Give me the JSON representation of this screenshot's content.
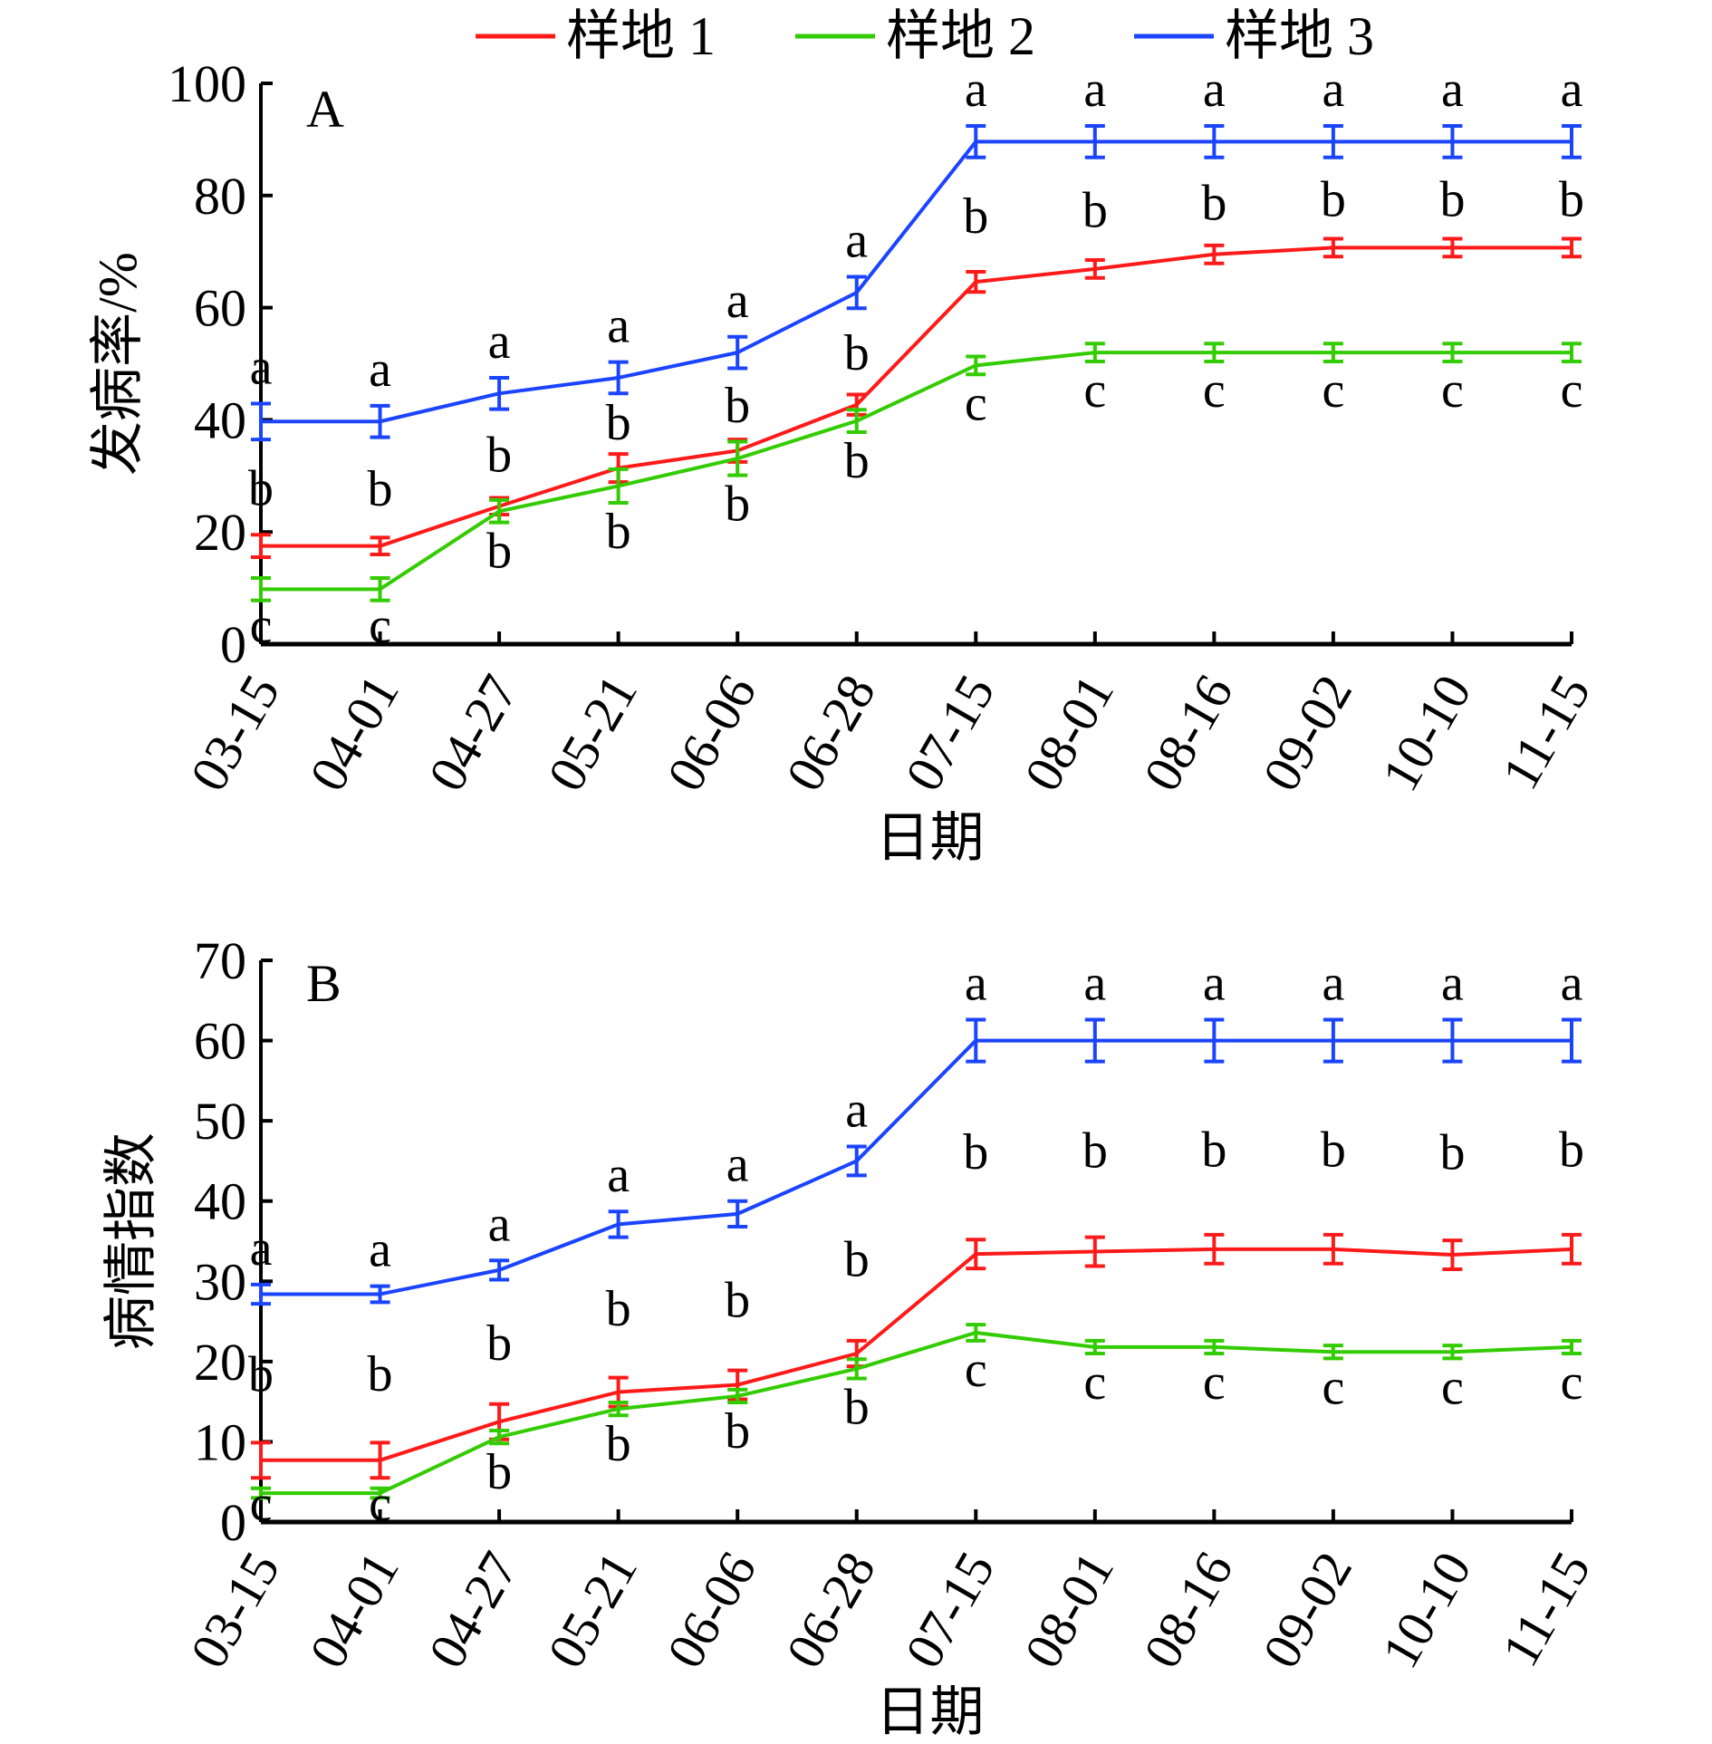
{
  "legend": [
    {
      "label": "样地 1",
      "color": "#ff1a1a"
    },
    {
      "label": "样地 2",
      "color": "#33cc00"
    },
    {
      "label": "样地 3",
      "color": "#1a44ff"
    }
  ],
  "chart_data": [
    {
      "type": "line",
      "panel": "A",
      "xlabel": "日期",
      "ylabel": "发病率/%",
      "ylim": [
        0,
        100
      ],
      "yticks": [
        0,
        20,
        40,
        60,
        80,
        100
      ],
      "categories": [
        "03-15",
        "04-01",
        "04-27",
        "05-21",
        "06-06",
        "06-28",
        "07-15",
        "08-01",
        "08-16",
        "09-02",
        "10-10",
        "11-15"
      ],
      "series": [
        {
          "name": "样地 1",
          "color": "#ff1a1a",
          "values": [
            17.5,
            17.5,
            24.6,
            31.4,
            34.5,
            42.7,
            64.6,
            66.9,
            69.5,
            70.7,
            70.7,
            70.7
          ],
          "errors": [
            2,
            1.5,
            1.5,
            2.5,
            2,
            1.8,
            1.8,
            1.6,
            1.6,
            1.6,
            1.6,
            1.6
          ],
          "letters": [
            "b",
            "b",
            "b",
            "b",
            "b",
            "b",
            "b",
            "b",
            "b",
            "b",
            "b",
            "b"
          ]
        },
        {
          "name": "样地 2",
          "color": "#33cc00",
          "values": [
            9.8,
            9.8,
            23.7,
            28.2,
            33.1,
            39.8,
            49.7,
            52.0,
            52.0,
            52.0,
            52.0,
            52.0
          ],
          "errors": [
            2,
            2,
            2,
            3,
            3,
            2,
            1.6,
            1.6,
            1.6,
            1.6,
            1.6,
            1.6
          ],
          "letters": [
            "c",
            "c",
            "b",
            "b",
            "b",
            "b",
            "c",
            "c",
            "c",
            "c",
            "c",
            "c"
          ]
        },
        {
          "name": "样地 3",
          "color": "#1a44ff",
          "values": [
            39.7,
            39.7,
            44.7,
            47.5,
            52.0,
            62.7,
            89.6,
            89.6,
            89.6,
            89.6,
            89.6,
            89.6
          ],
          "errors": [
            3.2,
            2.8,
            2.8,
            2.8,
            2.8,
            2.8,
            2.8,
            2.8,
            2.8,
            2.8,
            2.8,
            2.8
          ],
          "letters": [
            "a",
            "a",
            "a",
            "a",
            "a",
            "a",
            "a",
            "a",
            "a",
            "a",
            "a",
            "a"
          ]
        }
      ]
    },
    {
      "type": "line",
      "panel": "B",
      "xlabel": "日期",
      "ylabel": "病情指数",
      "ylim": [
        0,
        70
      ],
      "yticks": [
        0,
        10,
        20,
        30,
        40,
        50,
        60,
        70
      ],
      "categories": [
        "03-15",
        "04-01",
        "04-27",
        "05-21",
        "06-06",
        "06-28",
        "07-15",
        "08-01",
        "08-16",
        "09-02",
        "10-10",
        "11-15"
      ],
      "series": [
        {
          "name": "样地 1",
          "color": "#ff1a1a",
          "values": [
            7.7,
            7.7,
            12.5,
            16.2,
            17.1,
            21.0,
            33.4,
            33.7,
            34.0,
            34.0,
            33.3,
            34.0
          ],
          "errors": [
            2.2,
            2.2,
            2.2,
            1.8,
            1.8,
            1.6,
            1.8,
            1.8,
            1.8,
            1.8,
            1.8,
            1.8
          ],
          "letters": [
            "b",
            "b",
            "b",
            "b",
            "b",
            "b",
            "b",
            "b",
            "b",
            "b",
            "b",
            "b"
          ]
        },
        {
          "name": "样地 2",
          "color": "#33cc00",
          "values": [
            3.6,
            3.6,
            10.6,
            14.1,
            15.7,
            19.1,
            23.6,
            21.8,
            21.8,
            21.2,
            21.2,
            21.8
          ],
          "errors": [
            0.6,
            0.6,
            0.8,
            0.8,
            0.8,
            1.2,
            1.0,
            0.8,
            0.8,
            0.8,
            0.8,
            0.8
          ],
          "letters": [
            "c",
            "c",
            "b",
            "b",
            "b",
            "b",
            "c",
            "c",
            "c",
            "c",
            "c",
            "c"
          ]
        },
        {
          "name": "样地 3",
          "color": "#1a44ff",
          "values": [
            28.4,
            28.4,
            31.4,
            37.1,
            38.4,
            45.0,
            60.0,
            60.0,
            60.0,
            60.0,
            60.0,
            60.0
          ],
          "errors": [
            1.2,
            1.0,
            1.2,
            1.6,
            1.6,
            1.8,
            2.6,
            2.6,
            2.6,
            2.6,
            2.6,
            2.6
          ],
          "letters": [
            "a",
            "a",
            "a",
            "a",
            "a",
            "a",
            "a",
            "a",
            "a",
            "a",
            "a",
            "a"
          ]
        }
      ]
    }
  ]
}
